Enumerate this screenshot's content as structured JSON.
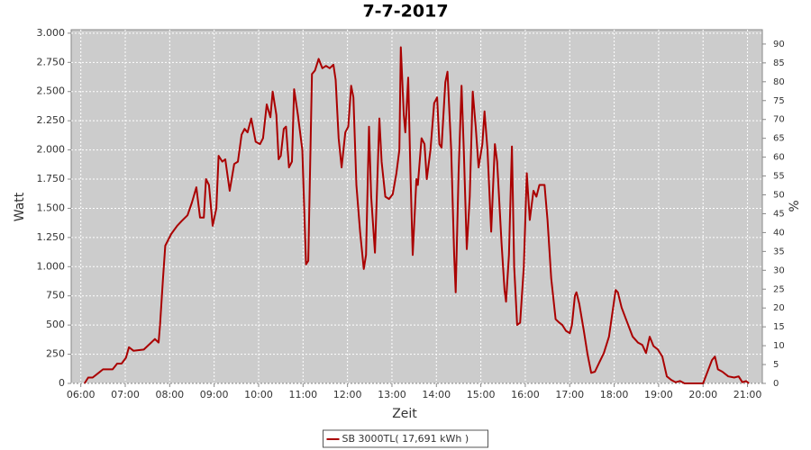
{
  "chart_data": {
    "type": "line",
    "title": "7-7-2017",
    "x_label": "Zeit",
    "y_label": "Watt",
    "y2_label": "%",
    "x": [
      "06:05",
      "06:10",
      "06:16",
      "06:24",
      "06:30",
      "06:43",
      "06:49",
      "06:55",
      "07:01",
      "07:05",
      "07:11",
      "07:25",
      "07:35",
      "07:40",
      "07:45",
      "07:47",
      "07:51",
      "07:54",
      "08:02",
      "08:10",
      "08:16",
      "08:24",
      "08:30",
      "08:36",
      "08:41",
      "08:46",
      "08:49",
      "08:53",
      "08:58",
      "09:03",
      "09:06",
      "09:11",
      "09:15",
      "09:21",
      "09:27",
      "09:32",
      "09:37",
      "09:41",
      "09:45",
      "09:50",
      "09:56",
      "10:02",
      "10:06",
      "10:11",
      "10:16",
      "10:19",
      "10:24",
      "10:27",
      "10:30",
      "10:34",
      "10:37",
      "10:41",
      "10:45",
      "10:48",
      "10:53",
      "10:59",
      "11:04",
      "11:07",
      "11:12",
      "11:16",
      "11:21",
      "11:26",
      "11:31",
      "11:36",
      "11:41",
      "11:44",
      "11:48",
      "11:52",
      "11:57",
      "12:01",
      "12:05",
      "12:08",
      "12:12",
      "12:17",
      "12:22",
      "12:25",
      "12:29",
      "12:32",
      "12:37",
      "12:43",
      "12:46",
      "12:51",
      "12:56",
      "13:01",
      "13:06",
      "13:10",
      "13:12",
      "13:16",
      "13:18",
      "13:22",
      "13:25",
      "13:28",
      "13:33",
      "13:35",
      "13:40",
      "13:44",
      "13:47",
      "13:52",
      "13:57",
      "14:01",
      "14:04",
      "14:07",
      "14:12",
      "14:15",
      "14:20",
      "14:24",
      "14:26",
      "14:30",
      "14:34",
      "14:37",
      "14:41",
      "14:45",
      "14:49",
      "14:53",
      "14:57",
      "15:02",
      "15:05",
      "15:09",
      "15:14",
      "15:19",
      "15:22",
      "15:28",
      "15:32",
      "15:34",
      "15:38",
      "15:42",
      "15:45",
      "15:49",
      "15:53",
      "15:58",
      "16:02",
      "16:06",
      "16:11",
      "16:15",
      "16:19",
      "16:26",
      "16:30",
      "16:35",
      "16:41",
      "16:46",
      "16:50",
      "16:55",
      "17:00",
      "17:03",
      "17:07",
      "17:09",
      "17:13",
      "17:19",
      "17:24",
      "17:29",
      "17:34",
      "17:40",
      "17:46",
      "17:53",
      "18:02",
      "18:05",
      "18:10",
      "18:16",
      "18:25",
      "18:32",
      "18:38",
      "18:43",
      "18:48",
      "18:53",
      "18:59",
      "19:05",
      "19:11",
      "19:17",
      "19:23",
      "19:29",
      "19:35",
      "19:48",
      "20:00",
      "20:06",
      "20:12",
      "20:16",
      "20:20",
      "20:26",
      "20:34",
      "20:42",
      "20:48",
      "20:53",
      "20:58",
      "21:02"
    ],
    "series": [
      {
        "name": "SB 3000TL( 17,691 kWh )",
        "color": "#aa0000",
        "values": [
          0,
          50,
          50,
          90,
          120,
          120,
          170,
          170,
          220,
          310,
          280,
          290,
          350,
          380,
          350,
          500,
          900,
          1180,
          1280,
          1350,
          1390,
          1440,
          1550,
          1680,
          1420,
          1420,
          1750,
          1700,
          1350,
          1500,
          1950,
          1900,
          1920,
          1650,
          1880,
          1900,
          2130,
          2180,
          2150,
          2270,
          2070,
          2050,
          2100,
          2390,
          2280,
          2500,
          2300,
          1920,
          1950,
          2180,
          2200,
          1850,
          1900,
          2520,
          2300,
          2000,
          1020,
          1050,
          2650,
          2680,
          2780,
          2700,
          2720,
          2700,
          2730,
          2600,
          2100,
          1850,
          2150,
          2200,
          2550,
          2450,
          1700,
          1300,
          980,
          1100,
          2200,
          1600,
          1120,
          2270,
          1900,
          1600,
          1580,
          1620,
          1800,
          2000,
          2880,
          2300,
          2150,
          2620,
          1800,
          1100,
          1750,
          1700,
          2100,
          2050,
          1750,
          2000,
          2400,
          2450,
          2050,
          2020,
          2580,
          2670,
          2000,
          1100,
          780,
          1800,
          2550,
          2000,
          1150,
          1600,
          2500,
          2200,
          1850,
          2050,
          2330,
          2000,
          1300,
          2050,
          1900,
          1200,
          800,
          700,
          1100,
          2030,
          1000,
          500,
          520,
          1000,
          1800,
          1400,
          1650,
          1600,
          1700,
          1700,
          1400,
          900,
          550,
          520,
          500,
          450,
          430,
          500,
          750,
          780,
          680,
          450,
          250,
          90,
          100,
          180,
          260,
          400,
          800,
          780,
          650,
          550,
          400,
          350,
          330,
          260,
          400,
          320,
          290,
          230,
          60,
          30,
          10,
          20,
          0,
          0,
          0,
          100,
          200,
          230,
          120,
          100,
          60,
          50,
          60,
          10,
          20,
          0
        ]
      }
    ],
    "xlim": [
      "05:47",
      "21:20"
    ],
    "xticks": [
      "06:00",
      "07:00",
      "08:00",
      "09:00",
      "10:00",
      "11:00",
      "12:00",
      "13:00",
      "14:00",
      "15:00",
      "16:00",
      "17:00",
      "18:00",
      "19:00",
      "20:00",
      "21:00"
    ],
    "ylim": [
      0,
      3030
    ],
    "yticks": [
      0,
      250,
      500,
      750,
      {
        "value": 1000,
        "label": "1.000"
      },
      {
        "value": 1250,
        "label": "1.250"
      },
      {
        "value": 1500,
        "label": "1.500"
      },
      {
        "value": 1750,
        "label": "1.750"
      },
      {
        "value": 2000,
        "label": "2.000"
      },
      {
        "value": 2250,
        "label": "2.250"
      },
      {
        "value": 2500,
        "label": "2.500"
      },
      {
        "value": 2750,
        "label": "2.750"
      },
      {
        "value": 3000,
        "label": "3.000"
      }
    ],
    "y2lim": [
      0,
      93.8
    ],
    "y2ticks": [
      0,
      5,
      10,
      15,
      20,
      25,
      30,
      35,
      40,
      45,
      50,
      55,
      60,
      65,
      70,
      75,
      80,
      85,
      90
    ],
    "grid": true,
    "legend": "bottom"
  }
}
